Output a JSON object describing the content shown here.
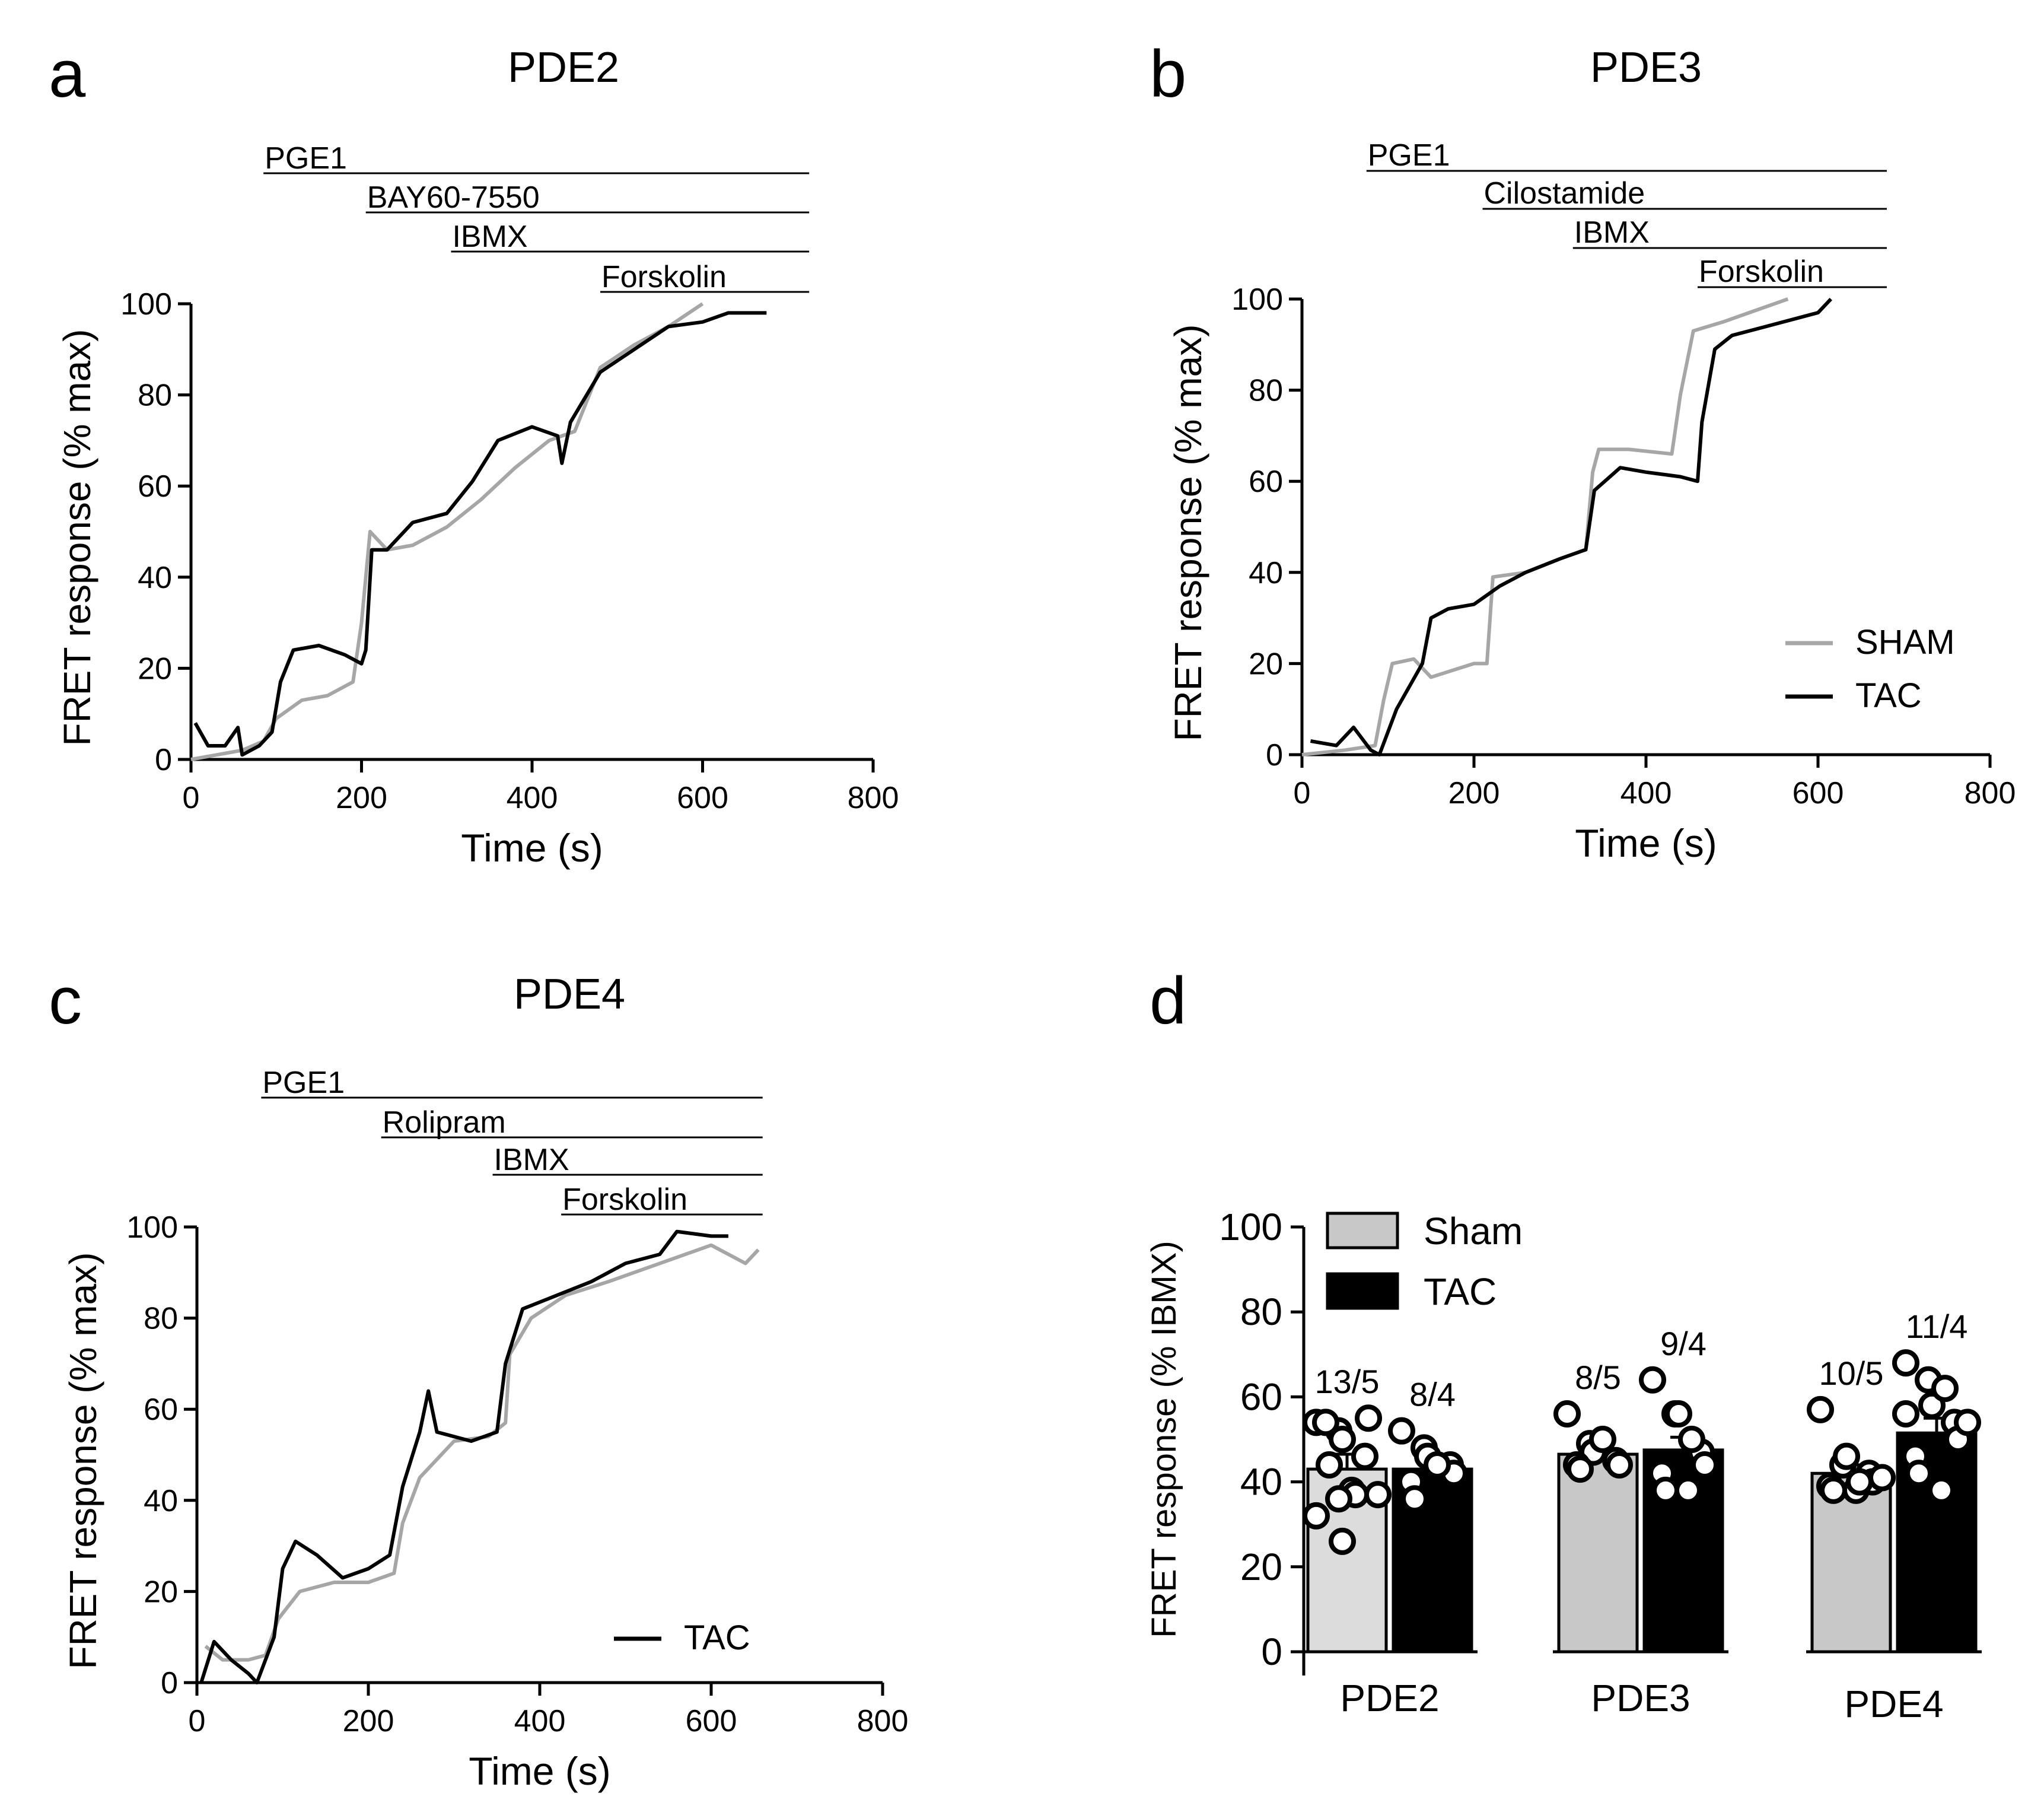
{
  "colors": {
    "sham": "#a6a6a6",
    "tac": "#000000",
    "sham_bar": "#c8c8c8",
    "sham_bar_light": "#dcdcdc"
  },
  "chart_data": [
    {
      "panel": "a",
      "type": "line",
      "title": "PDE2",
      "xlabel": "Time (s)",
      "ylabel": "FRET response (% max)",
      "xlim": [
        0,
        800
      ],
      "ylim": [
        0,
        100
      ],
      "xticks": [
        0,
        200,
        400,
        600,
        800
      ],
      "yticks": [
        0,
        20,
        40,
        60,
        80,
        100
      ],
      "treatments": [
        {
          "label": "PGE1",
          "start": 85,
          "end": 725
        },
        {
          "label": "BAY60-7550",
          "start": 205,
          "end": 725
        },
        {
          "label": "IBMX",
          "start": 305,
          "end": 725
        },
        {
          "label": "Forskolin",
          "start": 480,
          "end": 725
        }
      ],
      "legend": [],
      "series": [
        {
          "name": "SHAM",
          "color_key": "sham",
          "points": [
            [
              0,
              0
            ],
            [
              30,
              1
            ],
            [
              60,
              2
            ],
            [
              85,
              4
            ],
            [
              100,
              9
            ],
            [
              130,
              13
            ],
            [
              160,
              14
            ],
            [
              190,
              17
            ],
            [
              200,
              30
            ],
            [
              210,
              50
            ],
            [
              230,
              46
            ],
            [
              260,
              47
            ],
            [
              300,
              51
            ],
            [
              340,
              57
            ],
            [
              380,
              64
            ],
            [
              420,
              70
            ],
            [
              450,
              72
            ],
            [
              480,
              86
            ],
            [
              520,
              91
            ],
            [
              560,
              95
            ],
            [
              600,
              100
            ]
          ]
        },
        {
          "name": "TAC",
          "color_key": "tac",
          "points": [
            [
              5,
              8
            ],
            [
              20,
              3
            ],
            [
              40,
              3
            ],
            [
              55,
              7
            ],
            [
              60,
              1
            ],
            [
              80,
              3
            ],
            [
              95,
              6
            ],
            [
              105,
              17
            ],
            [
              120,
              24
            ],
            [
              150,
              25
            ],
            [
              180,
              23
            ],
            [
              200,
              21
            ],
            [
              205,
              24
            ],
            [
              212,
              46
            ],
            [
              230,
              46
            ],
            [
              260,
              52
            ],
            [
              300,
              54
            ],
            [
              330,
              61
            ],
            [
              360,
              70
            ],
            [
              400,
              73
            ],
            [
              430,
              71
            ],
            [
              435,
              65
            ],
            [
              445,
              74
            ],
            [
              480,
              85
            ],
            [
              520,
              90
            ],
            [
              560,
              95
            ],
            [
              600,
              96
            ],
            [
              630,
              98
            ],
            [
              675,
              98
            ]
          ]
        }
      ]
    },
    {
      "panel": "b",
      "type": "line",
      "title": "PDE3",
      "xlabel": "Time (s)",
      "ylabel": "FRET response (% max)",
      "xlim": [
        0,
        800
      ],
      "ylim": [
        0,
        100
      ],
      "xticks": [
        0,
        200,
        400,
        600,
        800
      ],
      "yticks": [
        0,
        20,
        40,
        60,
        80,
        100
      ],
      "treatments": [
        {
          "label": "PGE1",
          "start": 75,
          "end": 680
        },
        {
          "label": "Cilostamide",
          "start": 210,
          "end": 680
        },
        {
          "label": "IBMX",
          "start": 315,
          "end": 680
        },
        {
          "label": "Forskolin",
          "start": 460,
          "end": 680
        }
      ],
      "legend": [
        "SHAM",
        "TAC"
      ],
      "series": [
        {
          "name": "SHAM",
          "color_key": "sham",
          "points": [
            [
              0,
              0
            ],
            [
              50,
              1
            ],
            [
              85,
              2
            ],
            [
              95,
              12
            ],
            [
              105,
              20
            ],
            [
              130,
              21
            ],
            [
              150,
              17
            ],
            [
              200,
              20
            ],
            [
              215,
              20
            ],
            [
              222,
              39
            ],
            [
              260,
              40
            ],
            [
              300,
              43
            ],
            [
              330,
              45
            ],
            [
              338,
              62
            ],
            [
              345,
              67
            ],
            [
              380,
              67
            ],
            [
              430,
              66
            ],
            [
              440,
              79
            ],
            [
              455,
              93
            ],
            [
              490,
              95
            ],
            [
              520,
              97
            ],
            [
              565,
              100
            ]
          ]
        },
        {
          "name": "TAC",
          "color_key": "tac",
          "points": [
            [
              10,
              3
            ],
            [
              40,
              2
            ],
            [
              60,
              6
            ],
            [
              80,
              1
            ],
            [
              90,
              0
            ],
            [
              110,
              10
            ],
            [
              140,
              20
            ],
            [
              150,
              30
            ],
            [
              170,
              32
            ],
            [
              200,
              33
            ],
            [
              230,
              37
            ],
            [
              260,
              40
            ],
            [
              300,
              43
            ],
            [
              330,
              45
            ],
            [
              340,
              58
            ],
            [
              370,
              63
            ],
            [
              400,
              62
            ],
            [
              440,
              61
            ],
            [
              460,
              60
            ],
            [
              465,
              73
            ],
            [
              480,
              89
            ],
            [
              500,
              92
            ],
            [
              540,
              94
            ],
            [
              600,
              97
            ],
            [
              615,
              100
            ]
          ]
        }
      ]
    },
    {
      "panel": "c",
      "type": "line",
      "title": "PDE4",
      "xlabel": "Time (s)",
      "ylabel": "FRET response (% max)",
      "xlim": [
        0,
        800
      ],
      "ylim": [
        0,
        100
      ],
      "xticks": [
        0,
        200,
        400,
        600,
        800
      ],
      "yticks": [
        0,
        20,
        40,
        60,
        80,
        100
      ],
      "treatments": [
        {
          "label": "PGE1",
          "start": 75,
          "end": 660
        },
        {
          "label": "Rolipram",
          "start": 215,
          "end": 660
        },
        {
          "label": "IBMX",
          "start": 345,
          "end": 660
        },
        {
          "label": "Forskolin",
          "start": 425,
          "end": 660
        }
      ],
      "legend": [
        "TAC"
      ],
      "series": [
        {
          "name": "SHAM",
          "color_key": "sham",
          "points": [
            [
              10,
              8
            ],
            [
              30,
              5
            ],
            [
              60,
              5
            ],
            [
              80,
              6
            ],
            [
              95,
              14
            ],
            [
              120,
              20
            ],
            [
              160,
              22
            ],
            [
              200,
              22
            ],
            [
              230,
              24
            ],
            [
              240,
              35
            ],
            [
              260,
              45
            ],
            [
              300,
              53
            ],
            [
              340,
              54
            ],
            [
              360,
              57
            ],
            [
              365,
              72
            ],
            [
              390,
              80
            ],
            [
              430,
              85
            ],
            [
              480,
              88
            ],
            [
              540,
              92
            ],
            [
              600,
              96
            ],
            [
              640,
              92
            ],
            [
              655,
              95
            ]
          ]
        },
        {
          "name": "TAC",
          "color_key": "tac",
          "points": [
            [
              5,
              0
            ],
            [
              20,
              9
            ],
            [
              40,
              5
            ],
            [
              60,
              2
            ],
            [
              70,
              0
            ],
            [
              90,
              10
            ],
            [
              100,
              25
            ],
            [
              115,
              31
            ],
            [
              140,
              28
            ],
            [
              170,
              23
            ],
            [
              200,
              25
            ],
            [
              225,
              28
            ],
            [
              240,
              43
            ],
            [
              260,
              55
            ],
            [
              270,
              64
            ],
            [
              280,
              55
            ],
            [
              320,
              53
            ],
            [
              350,
              55
            ],
            [
              360,
              70
            ],
            [
              380,
              82
            ],
            [
              420,
              85
            ],
            [
              460,
              88
            ],
            [
              500,
              92
            ],
            [
              540,
              94
            ],
            [
              560,
              99
            ],
            [
              600,
              98
            ],
            [
              620,
              98
            ]
          ]
        }
      ]
    },
    {
      "panel": "d",
      "type": "bar",
      "ylabel": "FRET response (% IBMX)",
      "ylim": [
        0,
        100
      ],
      "yticks": [
        0,
        20,
        40,
        60,
        80,
        100
      ],
      "categories": [
        "PDE2",
        "PDE3",
        "PDE4"
      ],
      "legend": [
        "Sham",
        "TAC"
      ],
      "series": [
        {
          "name": "Sham",
          "values": [
            43,
            46.5,
            42
          ],
          "sem": [
            3.5,
            2,
            2
          ],
          "n_labels": [
            "13/5",
            "8/5",
            "10/5"
          ],
          "points": [
            [
              54,
              52,
              50,
              46,
              55,
              54,
              44,
              38,
              37,
              37,
              32,
              36,
              26
            ],
            [
              56,
              49,
              47,
              45,
              44,
              44,
              43,
              50
            ],
            [
              57,
              44,
              46,
              42,
              40,
              39,
              38,
              38,
              40,
              41
            ]
          ]
        },
        {
          "name": "TAC",
          "values": [
            43,
            47.5,
            51.5
          ],
          "sem": [
            2,
            3,
            3.5
          ],
          "n_labels": [
            "8/4",
            "9/4",
            "11/4"
          ],
          "points": [
            [
              52,
              48,
              46,
              44,
              42,
              40,
              36,
              44
            ],
            [
              64,
              56,
              56,
              47,
              44,
              42,
              38,
              38,
              50
            ],
            [
              68,
              64,
              58,
              54,
              50,
              46,
              42,
              38,
              62,
              54,
              56
            ]
          ]
        }
      ]
    }
  ]
}
